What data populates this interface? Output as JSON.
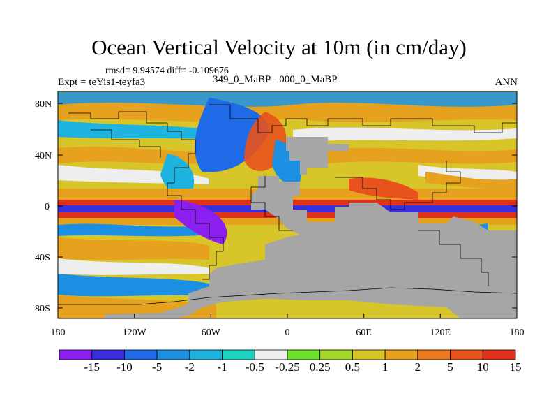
{
  "title": "Ocean Vertical Velocity at 10m (in cm/day)",
  "stats": "rmsd= 9.94574 diff= -0.109676",
  "experiment": "Expt = teYis1-teyfa3",
  "period": "349_0_MaBP - 000_0_MaBP",
  "season": "ANN",
  "y_ticks": [
    "80N",
    "40N",
    "0",
    "40S",
    "80S"
  ],
  "x_ticks": [
    "180",
    "120W",
    "60W",
    "0",
    "60E",
    "120E",
    "180"
  ],
  "colorbar": {
    "colors": [
      "#8a1ff0",
      "#3a2ddc",
      "#1f6ae6",
      "#1c8fe3",
      "#1fb3e0",
      "#1ed2c2",
      "#eeeeee",
      "#6fe02a",
      "#a6d62a",
      "#d8c52a",
      "#e6a21f",
      "#ec7a1d",
      "#e8521c",
      "#e0321a"
    ],
    "labels": [
      "-15",
      "-10",
      "-5",
      "-2",
      "-1",
      "-0.5",
      "-0.25",
      "0.25",
      "0.5",
      "1",
      "2",
      "5",
      "10",
      "15"
    ]
  },
  "colors": {
    "land": "#a6a6a6",
    "outline": "#000000"
  }
}
